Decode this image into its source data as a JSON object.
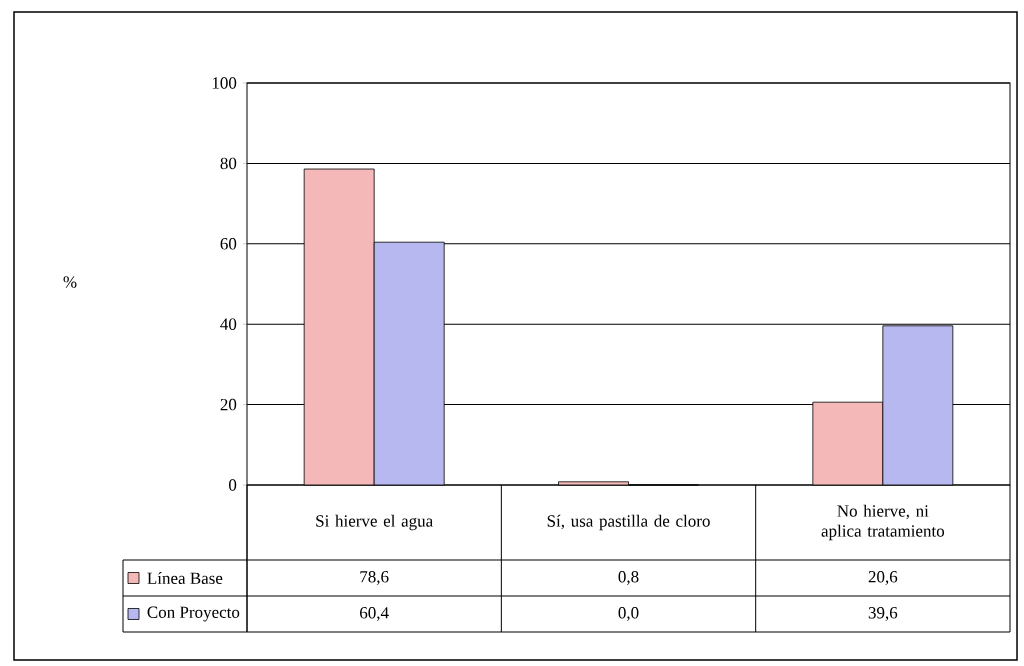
{
  "chart_data": {
    "type": "bar",
    "annotations": [
      "%"
    ],
    "legend": "bottom left",
    "categories": [
      "Si hierve el agua",
      "Sí, usa pastilla de cloro",
      "No hierve, ni aplica tratamiento"
    ],
    "series": [
      {
        "name": "Línea Base",
        "color": "#f4b8b8",
        "values": [
          78.6,
          0.8,
          20.6
        ],
        "value_labels": [
          "78,6",
          "0,8",
          "20,6"
        ]
      },
      {
        "name": "Con Proyecto",
        "color": "#b8b8f0",
        "values": [
          60.4,
          0.0,
          39.6
        ],
        "value_labels": [
          "60,4",
          "0,0",
          "39,6"
        ]
      }
    ],
    "ylim": [
      0,
      100
    ],
    "yticks": [
      0,
      20,
      40,
      60,
      80,
      100
    ],
    "grid": "y"
  }
}
